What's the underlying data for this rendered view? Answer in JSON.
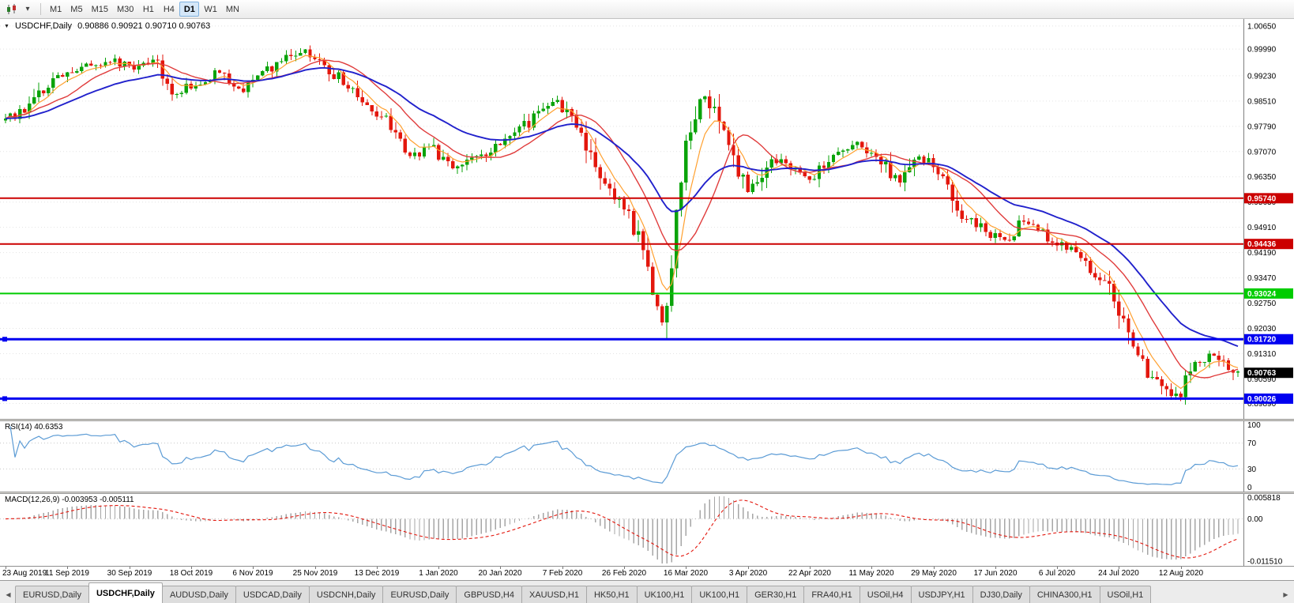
{
  "colors": {
    "bull": "#0aa30a",
    "bear": "#e3170d",
    "ma_fast": "#ffa02f",
    "ma_mid": "#e03c3c",
    "ma_slow": "#2121cc",
    "rsi_line": "#5b9bd5",
    "macd_hist": "#a6a6a6",
    "macd_signal": "#e3170d",
    "price_tag_bg": "#000000"
  },
  "icons": {
    "collapse": "▼",
    "chart_dropdown_caret": "▾",
    "tab_left": "◀",
    "tab_right": "▶"
  },
  "toolbar": {
    "timeframes": [
      "M1",
      "M5",
      "M15",
      "M30",
      "H1",
      "H4",
      "D1",
      "W1",
      "MN"
    ],
    "active_timeframe": "D1"
  },
  "chart": {
    "title": "USDCHF,Daily",
    "ohlc": "0.90886 0.90921 0.90710 0.90763",
    "current_price": "0.90763",
    "price_axis": [
      "1.00650",
      "0.99990",
      "0.99230",
      "0.98510",
      "0.97790",
      "0.97070",
      "0.96350",
      "0.95630",
      "0.94910",
      "0.94190",
      "0.93470",
      "0.92750",
      "0.92030",
      "0.91310",
      "0.90590",
      "0.89890"
    ],
    "horizontal_lines": [
      {
        "label": "0.95740",
        "price": 0.9574,
        "color": "#cc0000",
        "width": 2
      },
      {
        "label": "0.94436",
        "price": 0.94436,
        "color": "#cc0000",
        "width": 2
      },
      {
        "label": "0.93024",
        "price": 0.93024,
        "color": "#00cc00",
        "width": 2
      },
      {
        "label": "0.91720",
        "price": 0.9172,
        "color": "#0000f0",
        "width": 3
      },
      {
        "label": "0.90026",
        "price": 0.90026,
        "color": "#0000f0",
        "width": 3
      }
    ]
  },
  "rsi": {
    "label": "RSI(14) 40.6353",
    "value": 40.6353,
    "axis": [
      "100",
      "70",
      "30",
      "0"
    ],
    "levels": [
      70,
      30
    ]
  },
  "macd": {
    "label": "MACD(12,26,9) -0.003953 -0.005111",
    "values": [
      -0.003953,
      -0.005111
    ],
    "axis": [
      "0.005818",
      "0.00",
      "-0.011510"
    ]
  },
  "date_axis": [
    "23 Aug 2019",
    "11 Sep 2019",
    "30 Sep 2019",
    "18 Oct 2019",
    "6 Nov 2019",
    "25 Nov 2019",
    "13 Dec 2019",
    "1 Jan 2020",
    "20 Jan 2020",
    "7 Feb 2020",
    "26 Feb 2020",
    "16 Mar 2020",
    "3 Apr 2020",
    "22 Apr 2020",
    "11 May 2020",
    "29 May 2020",
    "17 Jun 2020",
    "6 Jul 2020",
    "24 Jul 2020",
    "12 Aug 2020"
  ],
  "tabs": {
    "active_index": 1,
    "items": [
      "EURUSD,Daily",
      "USDCHF,Daily",
      "AUDUSD,Daily",
      "USDCAD,Daily",
      "USDCNH,Daily",
      "EURUSD,Daily",
      "GBPUSD,H4",
      "XAUUSD,H1",
      "HK50,H1",
      "UK100,H1",
      "UK100,H1",
      "GER30,H1",
      "FRA40,H1",
      "USOil,H4",
      "USDJPY,H1",
      "DJ30,Daily",
      "CHINA300,H1",
      "USOil,H1"
    ]
  },
  "chart_data": {
    "type": "candlestick",
    "symbol": "USDCHF",
    "timeframe": "Daily",
    "last_ohlc": {
      "open": 0.90886,
      "high": 0.90921,
      "low": 0.9071,
      "close": 0.90763
    },
    "price_view_range": [
      0.8945,
      1.0085
    ],
    "x_axis_dates": [
      "23 Aug 2019",
      "11 Sep 2019",
      "30 Sep 2019",
      "18 Oct 2019",
      "6 Nov 2019",
      "25 Nov 2019",
      "13 Dec 2019",
      "1 Jan 2020",
      "20 Jan 2020",
      "7 Feb 2020",
      "26 Feb 2020",
      "16 Mar 2020",
      "3 Apr 2020",
      "22 Apr 2020",
      "11 May 2020",
      "29 May 2020",
      "17 Jun 2020",
      "6 Jul 2020",
      "24 Jul 2020",
      "12 Aug 2020"
    ],
    "y_axis_labels": [
      "1.00650",
      "0.99990",
      "0.99230",
      "0.98510",
      "0.97790",
      "0.97070",
      "0.96350",
      "0.95630",
      "0.94910",
      "0.94190",
      "0.93470",
      "0.92750",
      "0.92030",
      "0.91310",
      "0.90590",
      "0.89890"
    ],
    "weekly_closes": [
      0.9795,
      0.983,
      0.99,
      0.9935,
      0.995,
      0.997,
      0.9935,
      0.9965,
      0.987,
      0.9905,
      0.9935,
      0.9875,
      0.992,
      0.9965,
      0.999,
      0.9955,
      0.99,
      0.984,
      0.979,
      0.969,
      0.972,
      0.966,
      0.969,
      0.9715,
      0.976,
      0.981,
      0.9845,
      0.978,
      0.963,
      0.956,
      0.942,
      0.919,
      0.975,
      0.988,
      0.97,
      0.958,
      0.969,
      0.966,
      0.963,
      0.97,
      0.973,
      0.97,
      0.962,
      0.97,
      0.964,
      0.952,
      0.949,
      0.945,
      0.951,
      0.946,
      0.943,
      0.938,
      0.93,
      0.914,
      0.906,
      0.8995,
      0.91,
      0.913,
      0.9076
    ],
    "horizontal_lines": [
      0.9574,
      0.94436,
      0.93024,
      0.9172,
      0.90026
    ],
    "moving_averages": [
      {
        "name": "fast",
        "type": "ema",
        "period": 6,
        "color": "#ffa02f"
      },
      {
        "name": "medium",
        "type": "sma",
        "period": 14,
        "color": "#e03c3c"
      },
      {
        "name": "slow",
        "type": "ema",
        "period": 30,
        "color": "#2121cc"
      }
    ],
    "indicators": [
      {
        "name": "RSI",
        "params": "14",
        "value": 40.6353,
        "range": [
          0,
          100
        ],
        "levels": [
          70,
          30
        ]
      },
      {
        "name": "MACD",
        "params": "12,26,9",
        "values": [
          -0.003953,
          -0.005111
        ],
        "axis": [
          0.005818,
          0.0,
          -0.01151
        ]
      }
    ]
  }
}
